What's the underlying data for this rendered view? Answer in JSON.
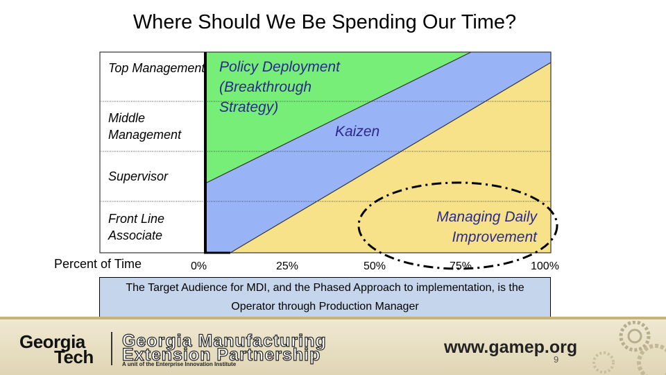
{
  "title": "Where Should We Be Spending Our Time?",
  "diagram": {
    "rows": [
      "Top Management",
      "Middle Management",
      "Supervisor",
      "Front Line Associate"
    ],
    "regions": {
      "policy": "Policy Deployment (Breakthrough Strategy)",
      "kaizen": "Kaizen",
      "daily": "Managing Daily Improvement"
    },
    "x_axis_label": "Percent of Time",
    "x_ticks": [
      "0%",
      "25%",
      "50%",
      "75%",
      "100%"
    ],
    "colors": {
      "policy": "#77ee77",
      "kaizen": "#99b3f7",
      "daily": "#f7e28a",
      "highlight_ellipse": "#000000"
    }
  },
  "note": "The Target Audience for MDI, and the Phased Approach to implementation, is the Operator through Production Manager",
  "footer": {
    "gt_logo_line1": "Georgia",
    "gt_logo_line2": "Tech",
    "org_line1": "Georgia Manufacturing",
    "org_line2": "Extension Partnership",
    "org_tagline": "A unit of the Enterprise Innovation Institute",
    "url": "www.gamep.org",
    "page_number": "9"
  }
}
